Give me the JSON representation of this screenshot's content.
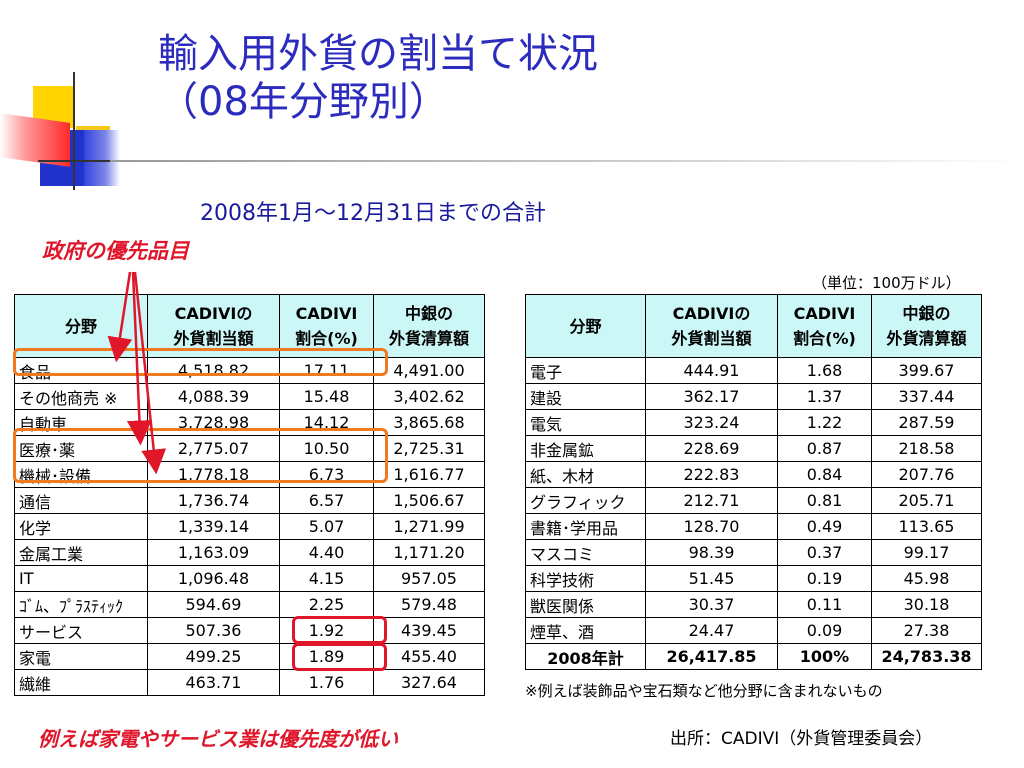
{
  "title_line1": "輸入用外貨の割当て状況",
  "title_line2": "（08年分野別）",
  "subtitle": "2008年1月～12月31日までの合計",
  "priority_label": "政府の優先品目",
  "unit_label": "（単位：100万ドル）",
  "headers": {
    "category": "分野",
    "allocation_line1": "CADIVIの",
    "allocation_line2": "外貨割当額",
    "ratio_line1": "CADIVI",
    "ratio_line2": "割合(%)",
    "settlement_line1": "中銀の",
    "settlement_line2": "外貨清算額"
  },
  "left_rows": [
    {
      "category": "食品",
      "allocation": "4,518.82",
      "ratio": "17.11",
      "settlement": "4,491.00"
    },
    {
      "category": "その他商売 ※",
      "allocation": "4,088.39",
      "ratio": "15.48",
      "settlement": "3,402.62"
    },
    {
      "category": "自動車",
      "allocation": "3,728.98",
      "ratio": "14.12",
      "settlement": "3,865.68"
    },
    {
      "category": "医療･薬",
      "allocation": "2,775.07",
      "ratio": "10.50",
      "settlement": "2,725.31"
    },
    {
      "category": "機械･設備",
      "allocation": "1,778.18",
      "ratio": "6.73",
      "settlement": "1,616.77"
    },
    {
      "category": "通信",
      "allocation": "1,736.74",
      "ratio": "6.57",
      "settlement": "1,506.67"
    },
    {
      "category": "化学",
      "allocation": "1,339.14",
      "ratio": "5.07",
      "settlement": "1,271.99"
    },
    {
      "category": "金属工業",
      "allocation": "1,163.09",
      "ratio": "4.40",
      "settlement": "1,171.20"
    },
    {
      "category": "IT",
      "allocation": "1,096.48",
      "ratio": "4.15",
      "settlement": "957.05"
    },
    {
      "category": "ｺﾞﾑ、ﾌﾟﾗｽﾃｨｯｸ",
      "allocation": "594.69",
      "ratio": "2.25",
      "settlement": "579.48"
    },
    {
      "category": "サービス",
      "allocation": "507.36",
      "ratio": "1.92",
      "settlement": "439.45"
    },
    {
      "category": "家電",
      "allocation": "499.25",
      "ratio": "1.89",
      "settlement": "455.40"
    },
    {
      "category": "繊維",
      "allocation": "463.71",
      "ratio": "1.76",
      "settlement": "327.64"
    }
  ],
  "right_rows": [
    {
      "category": "電子",
      "allocation": "444.91",
      "ratio": "1.68",
      "settlement": "399.67"
    },
    {
      "category": "建設",
      "allocation": "362.17",
      "ratio": "1.37",
      "settlement": "337.44"
    },
    {
      "category": "電気",
      "allocation": "323.24",
      "ratio": "1.22",
      "settlement": "287.59"
    },
    {
      "category": "非金属鉱",
      "allocation": "228.69",
      "ratio": "0.87",
      "settlement": "218.58"
    },
    {
      "category": "紙、木材",
      "allocation": "222.83",
      "ratio": "0.84",
      "settlement": "207.76"
    },
    {
      "category": "グラフィック",
      "allocation": "212.71",
      "ratio": "0.81",
      "settlement": "205.71"
    },
    {
      "category": "書籍･学用品",
      "allocation": "128.70",
      "ratio": "0.49",
      "settlement": "113.65"
    },
    {
      "category": "マスコミ",
      "allocation": "98.39",
      "ratio": "0.37",
      "settlement": "99.17"
    },
    {
      "category": "科学技術",
      "allocation": "51.45",
      "ratio": "0.19",
      "settlement": "45.98"
    },
    {
      "category": "獣医関係",
      "allocation": "30.37",
      "ratio": "0.11",
      "settlement": "30.18"
    },
    {
      "category": "煙草、酒",
      "allocation": "24.47",
      "ratio": "0.09",
      "settlement": "27.38"
    }
  ],
  "total_row": {
    "category": "2008年計",
    "allocation": "26,417.85",
    "ratio": "100%",
    "settlement": "24,783.38"
  },
  "footnote": "※例えば装飾品や宝石類など他分野に含まれないもの",
  "bottom_note": "例えば家電やサービス業は優先度が低い",
  "source": "出所：CADIVI（外貨管理委員会）",
  "colors": {
    "title": "#2b2bbd",
    "subtitle": "#1a1a9c",
    "emphasis_red": "#e0162b",
    "highlight_orange": "#f07a20",
    "header_bg": "#ccf7f7"
  }
}
